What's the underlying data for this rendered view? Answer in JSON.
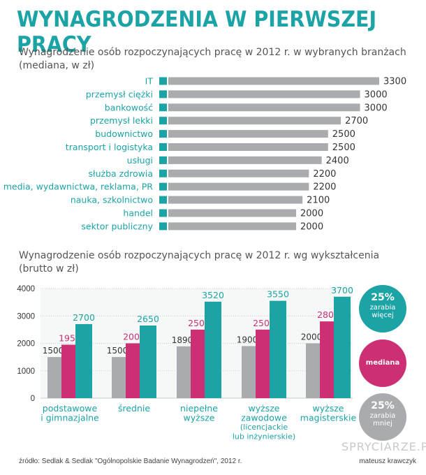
{
  "header": {
    "title": "WYNAGRODZENIA W PIERWSZEJ PRACY"
  },
  "colors": {
    "teal": "#1ba3a5",
    "gray": "#a9abae",
    "magenta": "#cc2f73",
    "text_dark": "#444444"
  },
  "chart_data": [
    {
      "type": "bar",
      "orientation": "horizontal",
      "title": "Wynagrodzenie osób rozpoczynających pracę w 2012 r. w wybranych branżach",
      "subtitle": "(mediana, w zł)",
      "categories": [
        "IT",
        "przemysł ciężki",
        "bankowość",
        "przemysł lekki",
        "budownictwo",
        "transport i logistyka",
        "usługi",
        "służba zdrowia",
        "media, wydawnictwa, reklama, PR",
        "nauka, szkolnictwo",
        "handel",
        "sektor publiczny"
      ],
      "values": [
        3300,
        3000,
        3000,
        2700,
        2500,
        2500,
        2400,
        2200,
        2200,
        2100,
        2000,
        2000
      ],
      "xlim": [
        0,
        3300
      ]
    },
    {
      "type": "bar",
      "title": "Wynagrodzenie osób rozpoczynających pracę w 2012 r. wg wykształcenia",
      "subtitle": "(brutto w zł)",
      "categories": [
        [
          "podstawowe",
          "i gimnazjalne"
        ],
        [
          "średnie"
        ],
        [
          "niepełne",
          "wyższe"
        ],
        [
          "wyższe",
          "zawodowe",
          "(licencjackie",
          "lub inżynierskie)"
        ],
        [
          "wyższe",
          "magisterskie"
        ]
      ],
      "series": [
        {
          "key": "low",
          "values": [
            1500,
            1500,
            1890,
            1900,
            2000
          ]
        },
        {
          "key": "median",
          "values": [
            1950,
            2000,
            2500,
            2500,
            2800
          ]
        },
        {
          "key": "high",
          "values": [
            2700,
            2650,
            3520,
            3550,
            3700
          ]
        }
      ],
      "ylim": [
        0,
        4000
      ],
      "yticks": [
        0,
        1000,
        2000,
        3000,
        4000
      ],
      "grid": true,
      "legend": [
        {
          "key": "high",
          "lines": [
            "25%",
            "zarabia",
            "więcej"
          ]
        },
        {
          "key": "median",
          "lines": [
            "mediana"
          ]
        },
        {
          "key": "low",
          "lines": [
            "25%",
            "zarabia",
            "mniej"
          ]
        }
      ]
    }
  ],
  "footer": {
    "source": "źródło: Sedlak & Sedlak \"Ogólnopolskie Badanie Wynagrodzeń\", 2012 r.",
    "credit": "mateusz krawczyk",
    "watermark": "SPRYCIARZE.PL"
  }
}
